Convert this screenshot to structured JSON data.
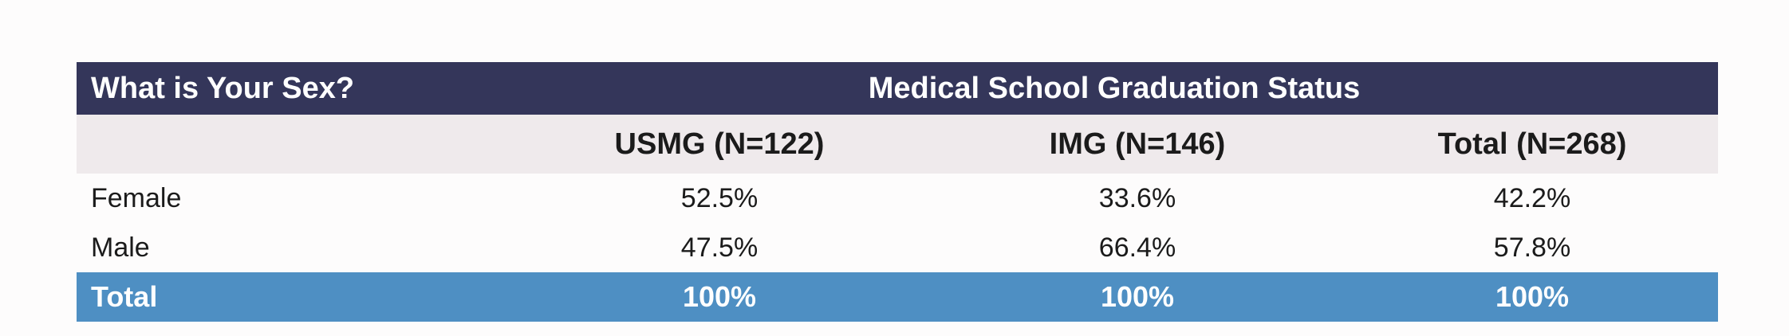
{
  "table": {
    "header": {
      "question": "What is Your Sex?",
      "group_title": "Medical School Graduation Status"
    },
    "columns": [
      "USMG (N=122)",
      "IMG (N=146)",
      "Total (N=268)"
    ],
    "rows": [
      {
        "label": "Female",
        "values": [
          "52.5%",
          "33.6%",
          "42.2%"
        ]
      },
      {
        "label": "Male",
        "values": [
          "47.5%",
          "66.4%",
          "57.8%"
        ]
      }
    ],
    "total": {
      "label": "Total",
      "values": [
        "100%",
        "100%",
        "100%"
      ]
    }
  },
  "colors": {
    "header_bg": "#34365a",
    "subheader_bg": "#efeaec",
    "total_bg": "#4e8fc3"
  }
}
